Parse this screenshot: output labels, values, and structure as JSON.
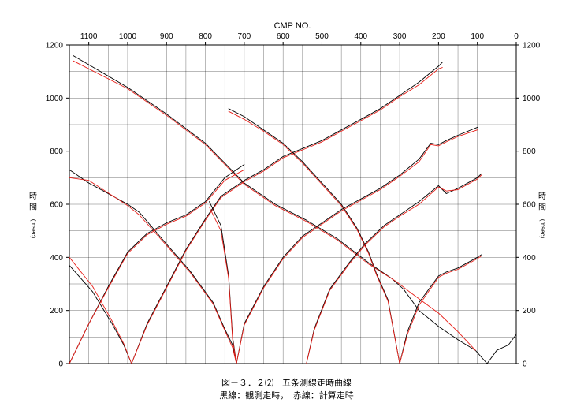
{
  "caption": {
    "line1": "図－３．２⑵　五条測線走時曲線",
    "line2": "黒線：観測走時，　赤線：計算走時"
  },
  "colors": {
    "observed": "#000000",
    "calculated": "#e8201a",
    "grid": "#000000"
  },
  "chart_data": {
    "type": "line",
    "title": "",
    "xlabel": "CMP NO.",
    "ylabel_left": "時 間",
    "ylabel_right": "時 間",
    "yunit": "(msec)",
    "x_reversed": true,
    "xlim": [
      1150,
      0
    ],
    "ylim": [
      0,
      1200
    ],
    "x_ticks": [
      1100,
      1000,
      900,
      800,
      700,
      600,
      500,
      400,
      300,
      200,
      100,
      0
    ],
    "x_tick_labels": [
      "1100",
      "1000",
      "900",
      "800",
      "700",
      "600",
      "500",
      "400",
      "300",
      "200",
      "100",
      "0"
    ],
    "y_ticks": [
      0,
      200,
      400,
      600,
      800,
      1000,
      1200
    ],
    "y_tick_labels": [
      "0",
      "200",
      "400",
      "600",
      "800",
      "1000",
      "1200"
    ],
    "grid": true,
    "series": [
      {
        "kind": "observed",
        "points": [
          [
            1140,
            1160
          ],
          [
            1000,
            1040
          ],
          [
            900,
            940
          ],
          [
            800,
            830
          ],
          [
            700,
            680
          ],
          [
            620,
            600
          ],
          [
            540,
            540
          ],
          [
            460,
            470
          ],
          [
            380,
            380
          ],
          [
            320,
            320
          ],
          [
            290,
            280
          ],
          [
            250,
            200
          ],
          [
            200,
            140
          ],
          [
            150,
            90
          ],
          [
            105,
            50
          ],
          [
            75,
            0
          ],
          [
            50,
            50
          ],
          [
            20,
            70
          ],
          [
            0,
            110
          ]
        ]
      },
      {
        "kind": "calculated",
        "points": [
          [
            1140,
            1140
          ],
          [
            1000,
            1035
          ],
          [
            900,
            935
          ],
          [
            800,
            825
          ],
          [
            700,
            675
          ],
          [
            620,
            595
          ],
          [
            540,
            535
          ],
          [
            460,
            465
          ],
          [
            380,
            375
          ],
          [
            310,
            310
          ],
          [
            270,
            265
          ],
          [
            200,
            190
          ],
          [
            150,
            120
          ],
          [
            105,
            50
          ]
        ]
      },
      {
        "kind": "observed",
        "points": [
          [
            1150,
            730
          ],
          [
            1100,
            680
          ],
          [
            1000,
            600
          ],
          [
            970,
            570
          ],
          [
            900,
            450
          ],
          [
            840,
            350
          ],
          [
            780,
            230
          ],
          [
            750,
            130
          ],
          [
            730,
            70
          ],
          [
            720,
            0
          ]
        ]
      },
      {
        "kind": "calculated",
        "points": [
          [
            1150,
            700
          ],
          [
            1100,
            690
          ],
          [
            1000,
            595
          ],
          [
            970,
            560
          ],
          [
            900,
            445
          ],
          [
            840,
            345
          ],
          [
            780,
            225
          ],
          [
            750,
            125
          ],
          [
            730,
            60
          ],
          [
            720,
            0
          ]
        ]
      },
      {
        "kind": "observed",
        "points": [
          [
            1150,
            370
          ],
          [
            1090,
            270
          ],
          [
            1040,
            150
          ],
          [
            1010,
            70
          ],
          [
            990,
            0
          ]
        ]
      },
      {
        "kind": "calculated",
        "points": [
          [
            1150,
            400
          ],
          [
            1090,
            290
          ],
          [
            1040,
            160
          ],
          [
            1010,
            75
          ],
          [
            990,
            0
          ]
        ]
      },
      {
        "kind": "observed",
        "points": [
          [
            1150,
            0
          ],
          [
            1100,
            150
          ],
          [
            1050,
            290
          ],
          [
            1000,
            420
          ],
          [
            950,
            490
          ],
          [
            900,
            530
          ],
          [
            850,
            560
          ],
          [
            800,
            610
          ],
          [
            750,
            700
          ],
          [
            700,
            750
          ]
        ]
      },
      {
        "kind": "calculated",
        "points": [
          [
            1150,
            0
          ],
          [
            1100,
            150
          ],
          [
            1050,
            285
          ],
          [
            1000,
            415
          ],
          [
            950,
            485
          ],
          [
            900,
            525
          ],
          [
            850,
            555
          ],
          [
            800,
            605
          ],
          [
            750,
            690
          ],
          [
            700,
            730
          ]
        ]
      },
      {
        "kind": "observed",
        "points": [
          [
            990,
            0
          ],
          [
            950,
            150
          ],
          [
            900,
            290
          ],
          [
            850,
            430
          ],
          [
            800,
            545
          ],
          [
            760,
            630
          ],
          [
            700,
            690
          ],
          [
            650,
            730
          ],
          [
            600,
            780
          ],
          [
            550,
            810
          ],
          [
            500,
            840
          ],
          [
            450,
            880
          ],
          [
            400,
            920
          ],
          [
            350,
            960
          ],
          [
            300,
            1010
          ],
          [
            250,
            1060
          ],
          [
            200,
            1120
          ],
          [
            190,
            1135
          ]
        ]
      },
      {
        "kind": "calculated",
        "points": [
          [
            990,
            0
          ],
          [
            950,
            145
          ],
          [
            900,
            285
          ],
          [
            850,
            425
          ],
          [
            800,
            540
          ],
          [
            760,
            625
          ],
          [
            700,
            685
          ],
          [
            650,
            725
          ],
          [
            600,
            775
          ],
          [
            550,
            805
          ],
          [
            500,
            835
          ],
          [
            450,
            875
          ],
          [
            400,
            915
          ],
          [
            350,
            955
          ],
          [
            300,
            1005
          ],
          [
            250,
            1050
          ],
          [
            200,
            1110
          ],
          [
            190,
            1115
          ]
        ]
      },
      {
        "kind": "observed",
        "points": [
          [
            740,
            960
          ],
          [
            700,
            930
          ],
          [
            650,
            880
          ],
          [
            600,
            830
          ],
          [
            550,
            760
          ],
          [
            500,
            680
          ],
          [
            450,
            600
          ],
          [
            410,
            510
          ],
          [
            380,
            420
          ],
          [
            360,
            340
          ],
          [
            330,
            240
          ],
          [
            300,
            0
          ]
        ]
      },
      {
        "kind": "calculated",
        "points": [
          [
            740,
            950
          ],
          [
            700,
            920
          ],
          [
            650,
            875
          ],
          [
            600,
            825
          ],
          [
            550,
            755
          ],
          [
            500,
            675
          ],
          [
            450,
            595
          ],
          [
            410,
            505
          ],
          [
            380,
            415
          ],
          [
            360,
            335
          ],
          [
            330,
            235
          ],
          [
            300,
            0
          ]
        ]
      },
      {
        "kind": "observed",
        "points": [
          [
            790,
            610
          ],
          [
            760,
            520
          ],
          [
            740,
            330
          ],
          [
            730,
            100
          ],
          [
            720,
            0
          ]
        ]
      },
      {
        "kind": "calculated",
        "points": [
          [
            790,
            590
          ],
          [
            760,
            500
          ],
          [
            740,
            320
          ],
          [
            730,
            90
          ],
          [
            720,
            0
          ]
        ]
      },
      {
        "kind": "observed",
        "points": [
          [
            720,
            0
          ],
          [
            700,
            150
          ],
          [
            650,
            290
          ],
          [
            600,
            400
          ],
          [
            550,
            480
          ],
          [
            500,
            530
          ],
          [
            450,
            580
          ],
          [
            400,
            620
          ],
          [
            350,
            660
          ],
          [
            300,
            710
          ],
          [
            250,
            770
          ],
          [
            220,
            830
          ],
          [
            200,
            825
          ],
          [
            180,
            840
          ],
          [
            150,
            860
          ],
          [
            100,
            890
          ]
        ]
      },
      {
        "kind": "calculated",
        "points": [
          [
            720,
            0
          ],
          [
            700,
            145
          ],
          [
            650,
            285
          ],
          [
            600,
            395
          ],
          [
            550,
            475
          ],
          [
            500,
            525
          ],
          [
            450,
            575
          ],
          [
            400,
            615
          ],
          [
            350,
            655
          ],
          [
            300,
            705
          ],
          [
            250,
            760
          ],
          [
            220,
            825
          ],
          [
            200,
            820
          ],
          [
            180,
            835
          ],
          [
            150,
            855
          ],
          [
            100,
            880
          ]
        ]
      },
      {
        "kind": "observed",
        "points": [
          [
            540,
            0
          ],
          [
            520,
            130
          ],
          [
            480,
            280
          ],
          [
            430,
            380
          ],
          [
            390,
            450
          ],
          [
            340,
            520
          ],
          [
            300,
            560
          ],
          [
            250,
            610
          ],
          [
            200,
            670
          ],
          [
            180,
            640
          ],
          [
            150,
            660
          ],
          [
            100,
            700
          ],
          [
            90,
            715
          ]
        ]
      },
      {
        "kind": "calculated",
        "points": [
          [
            540,
            0
          ],
          [
            520,
            125
          ],
          [
            480,
            275
          ],
          [
            430,
            375
          ],
          [
            390,
            445
          ],
          [
            340,
            515
          ],
          [
            300,
            555
          ],
          [
            250,
            600
          ],
          [
            200,
            665
          ],
          [
            180,
            650
          ],
          [
            150,
            655
          ],
          [
            100,
            695
          ],
          [
            90,
            710
          ]
        ]
      },
      {
        "kind": "observed",
        "points": [
          [
            300,
            0
          ],
          [
            280,
            120
          ],
          [
            250,
            230
          ],
          [
            200,
            330
          ],
          [
            180,
            345
          ],
          [
            150,
            360
          ],
          [
            100,
            400
          ],
          [
            90,
            410
          ]
        ]
      },
      {
        "kind": "calculated",
        "points": [
          [
            300,
            0
          ],
          [
            280,
            110
          ],
          [
            250,
            220
          ],
          [
            200,
            325
          ],
          [
            180,
            340
          ],
          [
            150,
            355
          ],
          [
            100,
            395
          ],
          [
            90,
            405
          ]
        ]
      }
    ]
  }
}
